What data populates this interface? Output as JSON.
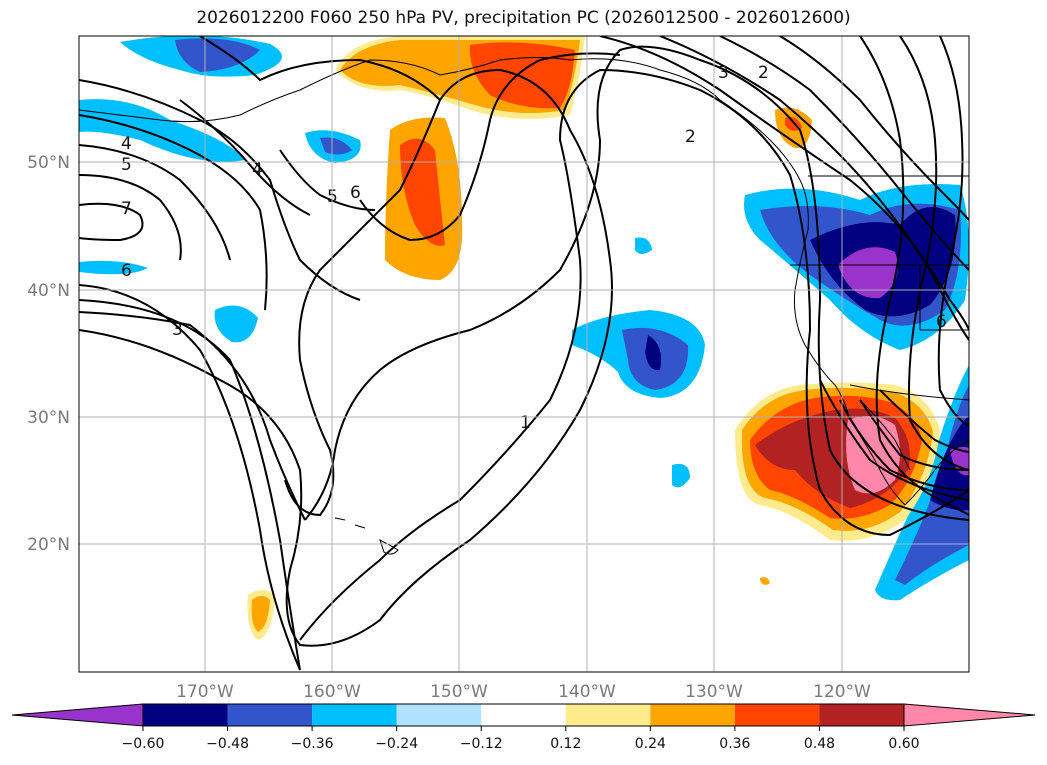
{
  "title": "2026012200 F060 250 hPa PV, precipitation PC (2026012500 - 2026012600)",
  "lon_labels": [
    "170°W",
    "160°W",
    "150°W",
    "140°W",
    "130°W",
    "120°W"
  ],
  "lat_labels": [
    "50°N",
    "40°N",
    "30°N",
    "20°N"
  ],
  "contour_labels": [
    "4",
    "5",
    "7",
    "6",
    "3",
    "4",
    "5",
    "6",
    "1",
    "2",
    "3",
    "2",
    "6"
  ],
  "colorbar": {
    "ticks": [
      "−0.60",
      "−0.48",
      "−0.36",
      "−0.24",
      "−0.12",
      "0.12",
      "0.24",
      "0.36",
      "0.48",
      "0.60"
    ],
    "colors": [
      "#9933cc",
      "#000080",
      "#3355cc",
      "#00bfff",
      "#b0e2ff",
      "#ffffff",
      "#ffea8c",
      "#ffa500",
      "#ff4500",
      "#b22222",
      "#ff88aa"
    ]
  }
}
